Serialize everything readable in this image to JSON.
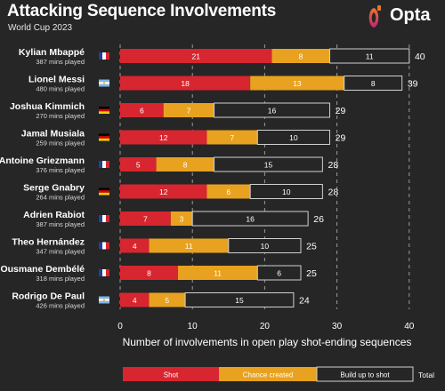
{
  "header": {
    "title": "Attacking Sequence Involvements",
    "subtitle": "World Cup 2023",
    "brand": "Opta"
  },
  "colors": {
    "shot": "#d7262f",
    "chance": "#e8a21f",
    "buildup": "#262626",
    "background": "#262626",
    "flag_fr_blue": "#1f3f9a",
    "flag_fr_red": "#d7262f",
    "flag_ar_blue": "#7fb6e6",
    "flag_de_red": "#dd0000",
    "flag_de_gold": "#ffce00",
    "logo_orange": "#e8762c",
    "logo_pink": "#c9227a"
  },
  "chart_data": {
    "type": "bar",
    "orientation": "horizontal",
    "stacked": true,
    "title": "Attacking Sequence Involvements",
    "subtitle": "World Cup 2023",
    "xlabel": "Number of involvements in open play shot-ending sequences",
    "xlim": [
      0,
      40
    ],
    "xticks": [
      0,
      10,
      20,
      30,
      40
    ],
    "grid": "vertical dashed",
    "legend": "bottom",
    "legend_total_label": "Total",
    "categories": [
      "Kylian Mbappé",
      "Lionel Messi",
      "Joshua Kimmich",
      "Jamal Musiala",
      "Antoine Griezmann",
      "Serge Gnabry",
      "Adrien Rabiot",
      "Theo Hernández",
      "Ousmane Dembélé",
      "Rodrigo De Paul"
    ],
    "minutes": [
      "387 mins played",
      "480 mins played",
      "270 mins played",
      "259 mins played",
      "376 mins played",
      "264 mins played",
      "387 mins played",
      "347 mins played",
      "318 mins played",
      "426 mins played"
    ],
    "flags": [
      "france-flag-icon",
      "argentina-flag-icon",
      "germany-flag-icon",
      "germany-flag-icon",
      "france-flag-icon",
      "germany-flag-icon",
      "france-flag-icon",
      "france-flag-icon",
      "france-flag-icon",
      "argentina-flag-icon"
    ],
    "series": [
      {
        "name": "Shot",
        "values": [
          21,
          18,
          6,
          12,
          5,
          12,
          7,
          4,
          8,
          4
        ]
      },
      {
        "name": "Chance created",
        "values": [
          8,
          13,
          7,
          7,
          8,
          6,
          3,
          11,
          11,
          5
        ]
      },
      {
        "name": "Build up to shot",
        "values": [
          11,
          8,
          16,
          10,
          15,
          10,
          16,
          10,
          6,
          15
        ]
      }
    ],
    "totals": [
      40,
      39,
      29,
      29,
      28,
      28,
      26,
      25,
      25,
      24
    ]
  }
}
